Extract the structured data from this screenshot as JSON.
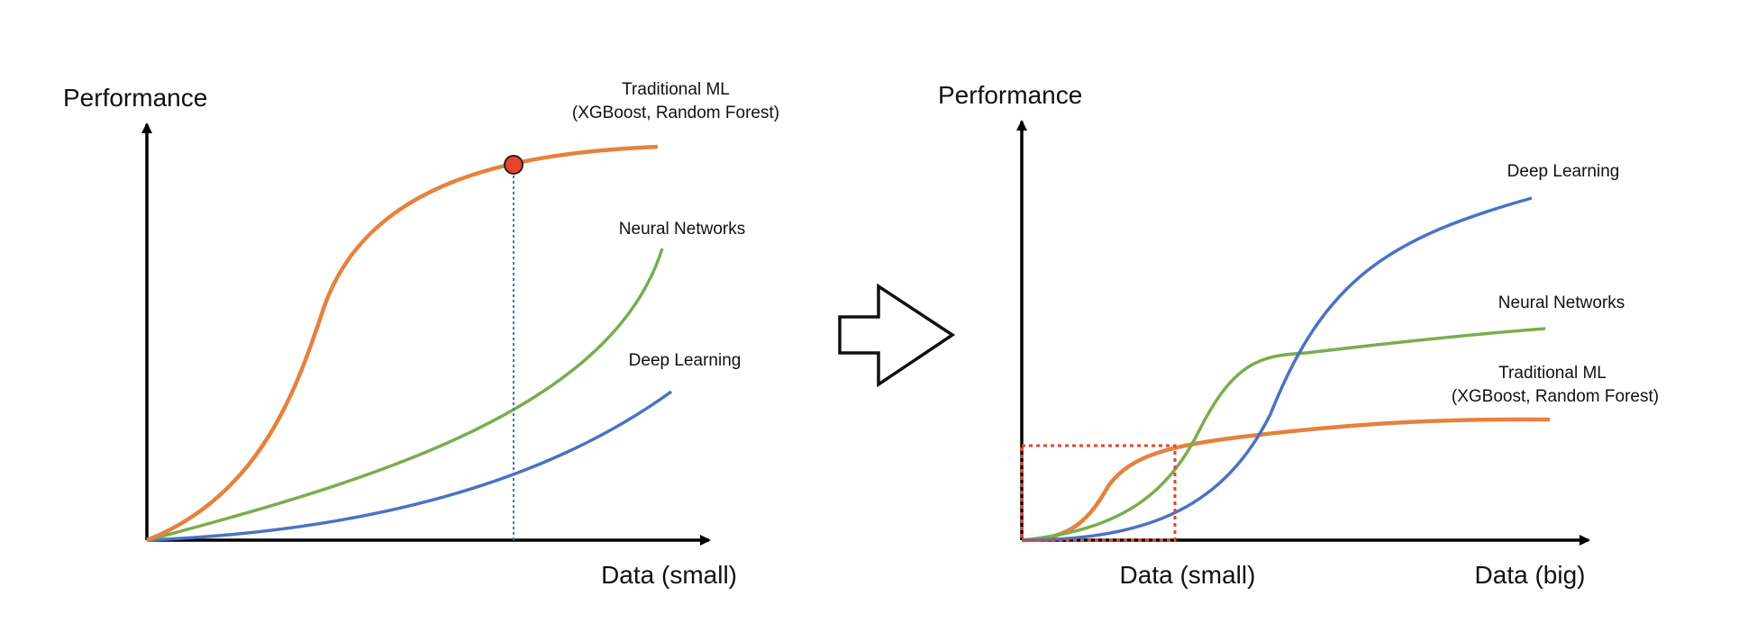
{
  "colors": {
    "traditional_ml": "#E4823F",
    "neural_networks": "#79AD4E",
    "deep_learning": "#4A72C4",
    "marker": "#E8432C",
    "highlight_box": "#E8432C",
    "axis": "#000000"
  },
  "left_panel": {
    "y_axis_title": "Performance",
    "x_axis_title": "Data (small)",
    "labels": {
      "traditional_ml_line1": "Traditional ML",
      "traditional_ml_line2": "(XGBoost, Random Forest)",
      "neural_networks": "Neural Networks",
      "deep_learning": "Deep Learning"
    }
  },
  "transition": {
    "icon": "right-arrow-icon"
  },
  "right_panel": {
    "y_axis_title": "Performance",
    "x_axis_small": "Data (small)",
    "x_axis_big": "Data (big)",
    "labels": {
      "deep_learning": "Deep Learning",
      "neural_networks": "Neural Networks",
      "traditional_ml_line1": "Traditional ML",
      "traditional_ml_line2": "(XGBoost, Random Forest)"
    }
  }
}
